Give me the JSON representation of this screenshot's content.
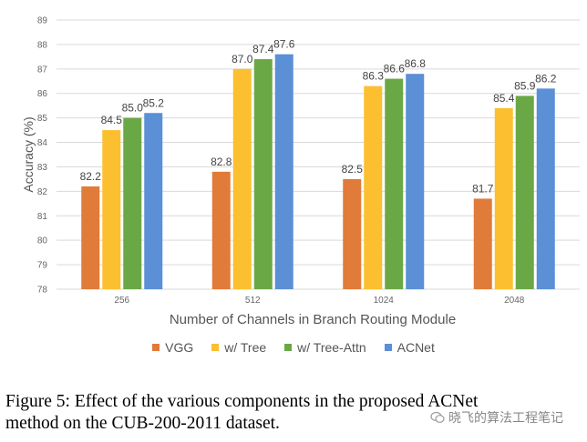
{
  "chart_data": {
    "type": "bar",
    "categories": [
      "256",
      "512",
      "1024",
      "2048"
    ],
    "series": [
      {
        "name": "VGG",
        "values": [
          82.2,
          82.8,
          82.5,
          81.7
        ],
        "color": "#E07B39"
      },
      {
        "name": "w/ Tree",
        "values": [
          84.5,
          87.0,
          86.3,
          85.4
        ],
        "color": "#FBBF30"
      },
      {
        "name": "w/ Tree-Attn",
        "values": [
          85.0,
          87.4,
          86.6,
          85.9
        ],
        "color": "#6AA846"
      },
      {
        "name": "ACNet",
        "values": [
          85.2,
          87.6,
          86.8,
          86.2
        ],
        "color": "#5B8FD6"
      }
    ],
    "value_labels": [
      [
        "82.2",
        "82.8",
        "82.5",
        "81.7"
      ],
      [
        "84.5",
        "87.0",
        "86.3",
        "85.4"
      ],
      [
        "85.0",
        "87.4",
        "86.6",
        "85.9"
      ],
      [
        "85.2",
        "87.6",
        "86.8",
        "86.2"
      ]
    ],
    "ylim": [
      78,
      89
    ],
    "yticks": [
      "78",
      "79",
      "80",
      "81",
      "82",
      "83",
      "84",
      "85",
      "86",
      "87",
      "88",
      "89"
    ],
    "xlabel": "Number of Channels in Branch Routing Module",
    "ylabel": "Accuracy (%)",
    "grid": true,
    "legend_position": "bottom"
  },
  "caption": {
    "line1": "Figure 5: Effect of the various components in the proposed ACNet",
    "line2": "method on the CUB-200-2011 dataset."
  },
  "watermark": "晓飞的算法工程笔记"
}
